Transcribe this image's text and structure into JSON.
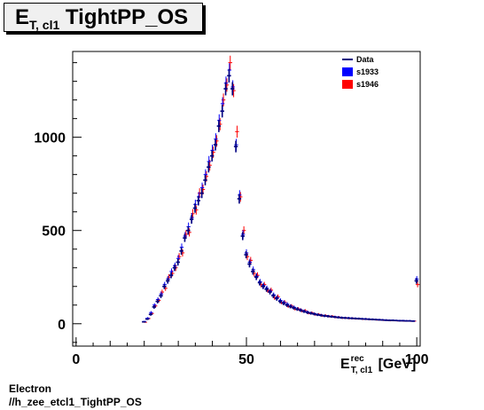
{
  "title": {
    "main": "E",
    "sub": "T, cl1",
    "rest": " TightPP_OS"
  },
  "xaxis": {
    "label_main": "E",
    "label_sup": "rec",
    "label_sub": "T, cl1",
    "unit": " [GeV]"
  },
  "footer": {
    "line1": "Electron",
    "line2": "//h_zee_etcl1_TightPP_OS"
  },
  "colors": {
    "data": "#00007f",
    "s1933": "#0000ff",
    "s1946": "#ff0000"
  },
  "chart_data": {
    "type": "scatter",
    "xlim": [
      -1,
      101
    ],
    "ylim": [
      -120,
      1460
    ],
    "xticks": [
      0,
      50,
      100
    ],
    "yticks": [
      0,
      500,
      1000
    ],
    "legend": [
      {
        "name": "Data",
        "style": "line",
        "color": "#00007f"
      },
      {
        "name": "s1933",
        "style": "box",
        "color": "#0000ff"
      },
      {
        "name": "s1946",
        "style": "box",
        "color": "#ff0000"
      }
    ],
    "x": [
      20,
      21,
      22,
      23,
      24,
      25,
      26,
      27,
      28,
      29,
      30,
      31,
      32,
      33,
      34,
      35,
      36,
      37,
      38,
      39,
      40,
      41,
      42,
      43,
      44,
      45,
      46,
      47,
      48,
      49,
      50,
      51,
      52,
      53,
      54,
      55,
      56,
      57,
      58,
      59,
      60,
      61,
      62,
      63,
      64,
      65,
      66,
      67,
      68,
      69,
      70,
      71,
      72,
      73,
      74,
      75,
      76,
      77,
      78,
      79,
      80,
      81,
      82,
      83,
      84,
      85,
      86,
      87,
      88,
      89,
      90,
      91,
      92,
      93,
      94,
      95,
      96,
      97,
      98,
      99,
      100
    ],
    "series": [
      {
        "name": "Data",
        "color": "#00007f",
        "values": [
          10,
          25,
          50,
          90,
          120,
          150,
          200,
          230,
          260,
          300,
          330,
          390,
          460,
          500,
          560,
          620,
          660,
          700,
          770,
          840,
          900,
          960,
          1060,
          1140,
          1260,
          1330,
          1260,
          950,
          670,
          470,
          370,
          320,
          280,
          250,
          220,
          200,
          185,
          170,
          150,
          135,
          120,
          110,
          100,
          92,
          85,
          78,
          72,
          66,
          60,
          56,
          52,
          48,
          45,
          42,
          40,
          38,
          36,
          34,
          32,
          31,
          30,
          29,
          28,
          27,
          26,
          25,
          24,
          23,
          22,
          21,
          20,
          19,
          18,
          18,
          17,
          16,
          16,
          15,
          15,
          14,
          230
        ]
      },
      {
        "name": "s1933",
        "color": "#0000ff",
        "values": [
          12,
          30,
          60,
          100,
          130,
          160,
          210,
          240,
          280,
          310,
          350,
          410,
          470,
          520,
          570,
          640,
          680,
          730,
          800,
          870,
          930,
          990,
          1090,
          1180,
          1290,
          1360,
          1270,
          960,
          690,
          480,
          380,
          330,
          290,
          255,
          225,
          205,
          190,
          175,
          155,
          140,
          125,
          115,
          105,
          95,
          88,
          80,
          74,
          68,
          62,
          57,
          53,
          49,
          46,
          43,
          41,
          39,
          37,
          35,
          33,
          32,
          31,
          30,
          29,
          28,
          27,
          26,
          25,
          24,
          23,
          22,
          21,
          20,
          19,
          19,
          18,
          17,
          17,
          16,
          16,
          15,
          240
        ]
      },
      {
        "name": "s1946",
        "color": "#ff0000",
        "values": [
          8,
          28,
          55,
          95,
          125,
          170,
          190,
          250,
          270,
          300,
          360,
          380,
          480,
          490,
          590,
          610,
          700,
          720,
          790,
          850,
          920,
          980,
          1070,
          1200,
          1280,
          1400,
          1250,
          1030,
          680,
          500,
          360,
          340,
          270,
          260,
          210,
          210,
          180,
          180,
          140,
          145,
          115,
          115,
          95,
          95,
          80,
          80,
          70,
          70,
          58,
          58,
          50,
          50,
          44,
          44,
          40,
          40,
          35,
          35,
          31,
          31,
          29,
          29,
          27,
          27,
          25,
          25,
          23,
          23,
          21,
          21,
          19,
          19,
          17,
          17,
          16,
          16,
          15,
          15,
          14,
          14,
          210
        ]
      }
    ]
  }
}
